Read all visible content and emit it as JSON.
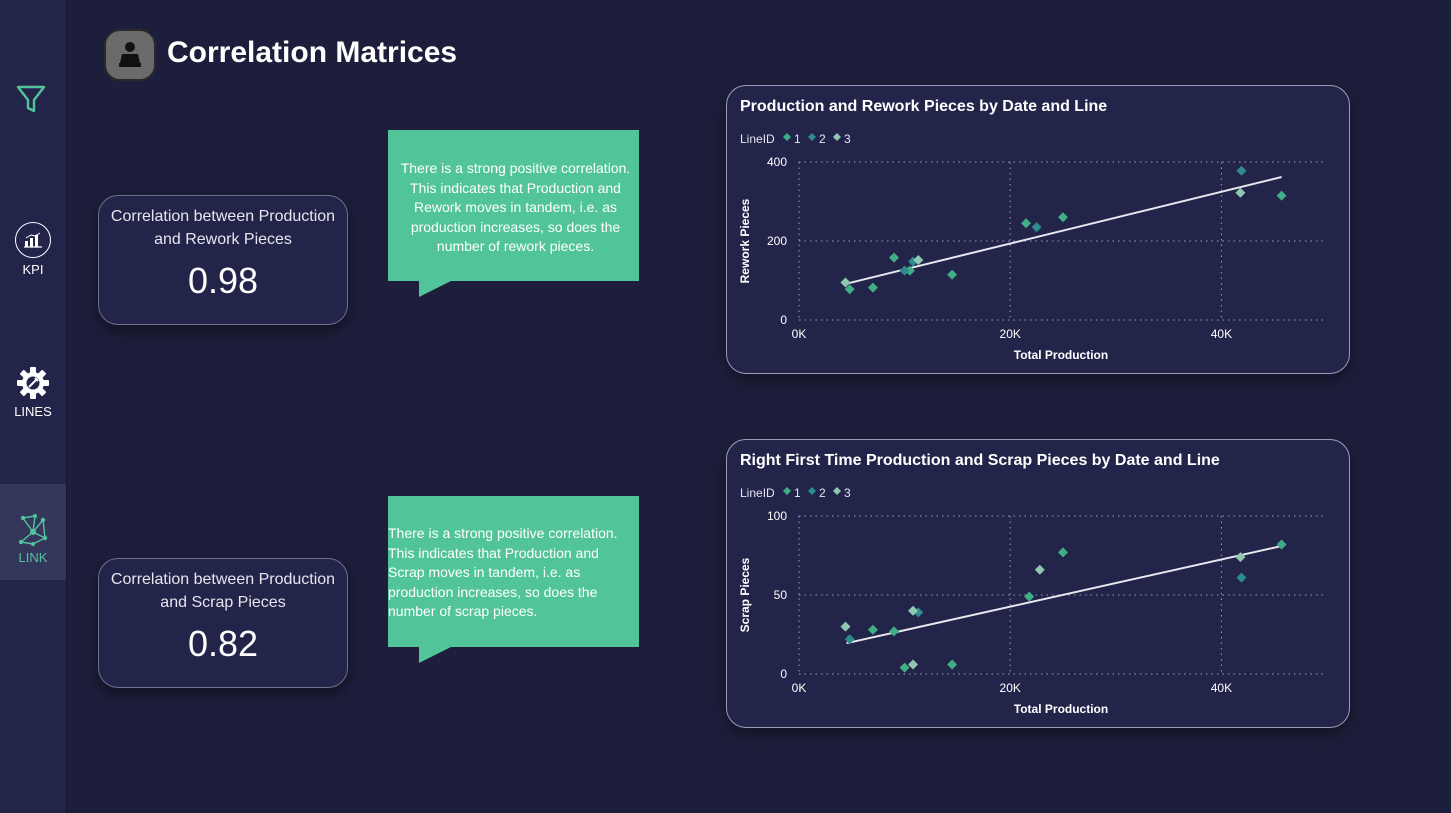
{
  "page": {
    "title": "Correlation Matrices"
  },
  "nav": {
    "items": [
      {
        "label": "KPI",
        "icon": "kpi-chart-icon"
      },
      {
        "label": "LINES",
        "icon": "gear-icon"
      },
      {
        "label": "LINK",
        "icon": "network-icon",
        "active": true
      }
    ],
    "filter_icon": "filter-icon",
    "accent": "#52c49a"
  },
  "cards": [
    {
      "caption": "Correlation between Production and Rework Pieces",
      "value": "0.98"
    },
    {
      "caption": "Correlation between Production and Scrap Pieces",
      "value": "0.82"
    }
  ],
  "callouts": [
    {
      "text": "There is a strong positive correlation. This indicates that Production and Rework moves in tandem, i.e. as production increases, so does the number of rework pieces."
    },
    {
      "text": "There is a strong positive correlation. This indicates that Production and Scrap moves in tandem, i.e. as production increases, so does the number of scrap pieces."
    }
  ],
  "chart_data": [
    {
      "type": "scatter",
      "title": "Production and Rework Pieces by Date and Line",
      "legend_title": "LineID",
      "legend_placement": "top-left",
      "xlabel": "Total Production",
      "ylabel": "Rework Pieces",
      "xlim": [
        0,
        50000
      ],
      "ylim": [
        0,
        400
      ],
      "x_ticks": [
        "0K",
        "20K",
        "40K"
      ],
      "y_ticks": [
        "0",
        "200",
        "400"
      ],
      "grid": true,
      "trend_line": {
        "x": [
          4500,
          45700
        ],
        "y": [
          92,
          362
        ]
      },
      "series": [
        {
          "name": "1",
          "color": "#3fae84",
          "points": [
            [
              4800,
              78
            ],
            [
              7000,
              82
            ],
            [
              9000,
              158
            ],
            [
              10500,
              125
            ],
            [
              14500,
              115
            ],
            [
              21500,
              245
            ],
            [
              25000,
              260
            ],
            [
              45700,
              315
            ]
          ]
        },
        {
          "name": "2",
          "color": "#2d8c8c",
          "points": [
            [
              10000,
              125
            ],
            [
              10800,
              148
            ],
            [
              22500,
              235
            ],
            [
              41900,
              378
            ]
          ]
        },
        {
          "name": "3",
          "color": "#8fc7b2",
          "points": [
            [
              4400,
              95
            ],
            [
              11300,
              152
            ],
            [
              41800,
              322
            ]
          ]
        }
      ]
    },
    {
      "type": "scatter",
      "title": "Right First Time Production and Scrap Pieces by Date and Line",
      "legend_title": "LineID",
      "legend_placement": "top-left",
      "xlabel": "Total Production",
      "ylabel": "Scrap Pieces",
      "xlim": [
        0,
        50000
      ],
      "ylim": [
        0,
        100
      ],
      "x_ticks": [
        "0K",
        "20K",
        "40K"
      ],
      "y_ticks": [
        "0",
        "50",
        "100"
      ],
      "grid": true,
      "trend_line": {
        "x": [
          4500,
          45700
        ],
        "y": [
          19.5,
          81
        ]
      },
      "series": [
        {
          "name": "1",
          "color": "#3fae84",
          "points": [
            [
              7000,
              28
            ],
            [
              9000,
              27
            ],
            [
              10000,
              4
            ],
            [
              14500,
              6
            ],
            [
              21800,
              49
            ],
            [
              25000,
              77
            ],
            [
              45700,
              82
            ]
          ]
        },
        {
          "name": "2",
          "color": "#2d8c8c",
          "points": [
            [
              4800,
              22
            ],
            [
              11300,
              39
            ],
            [
              41900,
              61
            ]
          ]
        },
        {
          "name": "3",
          "color": "#8fc7b2",
          "points": [
            [
              4400,
              30
            ],
            [
              10800,
              40
            ],
            [
              10800,
              6
            ],
            [
              22800,
              66
            ],
            [
              41800,
              74
            ]
          ]
        }
      ]
    }
  ]
}
